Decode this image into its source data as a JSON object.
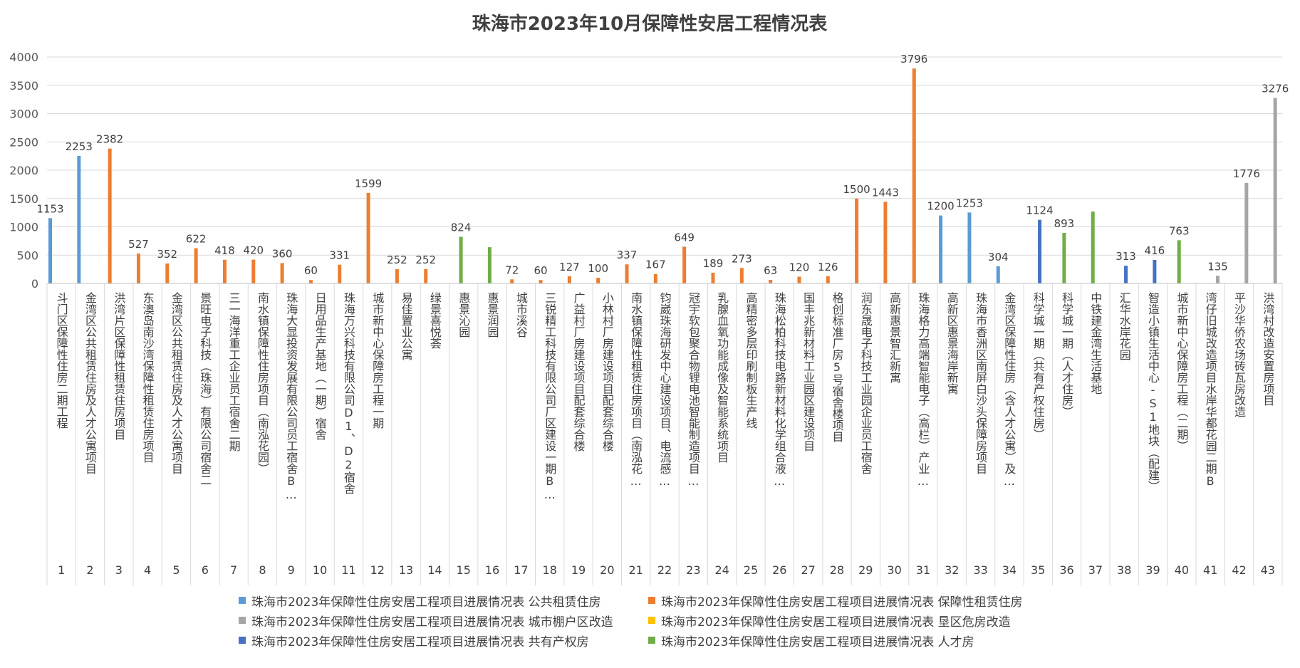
{
  "chart_data": {
    "type": "bar",
    "title": "珠海市2023年10月保障性安居工程情况表",
    "xlabel": "",
    "ylabel": "",
    "ylim": [
      0,
      4000
    ],
    "yticks": [
      0,
      500,
      1000,
      1500,
      2000,
      2500,
      3000,
      3500,
      4000
    ],
    "grid": true,
    "legend_position": "bottom",
    "series": [
      {
        "name": "珠海市2023年保障性住房安居工程项目进展情况表 公共租赁住房",
        "color": "#5B9BD5"
      },
      {
        "name": "珠海市2023年保障性住房安居工程项目进展情况表 保障性租赁住房",
        "color": "#ED7D31"
      },
      {
        "name": "珠海市2023年保障性住房安居工程项目进展情况表 城市棚户区改造",
        "color": "#A5A5A5"
      },
      {
        "name": "珠海市2023年保障性住房安居工程项目进展情况表 垦区危房改造",
        "color": "#FFC000"
      },
      {
        "name": "珠海市2023年保障性住房安居工程项目进展情况表 共有产权房",
        "color": "#4472C4"
      },
      {
        "name": "珠海市2023年保障性住房安居工程项目进展情况表 人才房",
        "color": "#70AD47"
      }
    ],
    "categories": [
      {
        "no": "1",
        "name": "斗门区保障性住房二期工程",
        "value": 1153,
        "series": 0,
        "label": "1153"
      },
      {
        "no": "2",
        "name": "金湾区公共租赁住房及人才公寓项目",
        "value": 2253,
        "series": 0,
        "label": "2253"
      },
      {
        "no": "3",
        "name": "洪湾片区保障性租赁住房项目",
        "value": 2382,
        "series": 1,
        "label": "2382"
      },
      {
        "no": "4",
        "name": "东澳岛南沙湾保障性租赁住房项目",
        "value": 527,
        "series": 1,
        "label": "527"
      },
      {
        "no": "5",
        "name": "金湾区公共租赁住房及人才公寓项目",
        "value": 352,
        "series": 1,
        "label": "352"
      },
      {
        "no": "6",
        "name": "景旺电子科技（珠海）有限公司宿舍二",
        "value": 622,
        "series": 1,
        "label": "622"
      },
      {
        "no": "7",
        "name": "三一海洋重工企业员工宿舍二期",
        "value": 418,
        "series": 1,
        "label": "418"
      },
      {
        "no": "8",
        "name": "南水镇保障性住房项目（南泓花园）",
        "value": 420,
        "series": 1,
        "label": "420"
      },
      {
        "no": "9",
        "name": "珠海大显投资发展有限公司员工宿舍B…",
        "value": 360,
        "series": 1,
        "label": "360"
      },
      {
        "no": "10",
        "name": "日用品生产基地（一期）宿舍",
        "value": 60,
        "series": 1,
        "label": "60"
      },
      {
        "no": "11",
        "name": "珠海万兴科技有限公司D1、D2宿舍",
        "value": 331,
        "series": 1,
        "label": "331"
      },
      {
        "no": "12",
        "name": "城市新中心保障房工程一期",
        "value": 1599,
        "series": 1,
        "label": "1599"
      },
      {
        "no": "13",
        "name": "易佳置业公寓",
        "value": 252,
        "series": 1,
        "label": "252"
      },
      {
        "no": "14",
        "name": "绿景喜悦荟",
        "value": 252,
        "series": 1,
        "label": "252"
      },
      {
        "no": "15",
        "name": "惠景沁园",
        "value": 824,
        "series": 5,
        "label": "824"
      },
      {
        "no": "16",
        "name": "惠景润园",
        "value": 640,
        "series": 5,
        "label": ""
      },
      {
        "no": "17",
        "name": "城市溪谷",
        "value": 72,
        "series": 1,
        "label": "72"
      },
      {
        "no": "18",
        "name": "三锐精工科技有限公司厂区建设一期B…",
        "value": 60,
        "series": 1,
        "label": "60"
      },
      {
        "no": "19",
        "name": "广益村厂房建设项目配套综合楼",
        "value": 127,
        "series": 1,
        "label": "127"
      },
      {
        "no": "20",
        "name": "小林村厂房建设项目配套综合楼",
        "value": 100,
        "series": 1,
        "label": "100"
      },
      {
        "no": "21",
        "name": "南水镇保障性租赁住房项目（南泓花…",
        "value": 337,
        "series": 1,
        "label": "337"
      },
      {
        "no": "22",
        "name": "钧崴珠海研发中心建设项目、电流感…",
        "value": 167,
        "series": 1,
        "label": "167"
      },
      {
        "no": "23",
        "name": "冠宇软包聚合物锂电池智能制造项目…",
        "value": 649,
        "series": 1,
        "label": "649"
      },
      {
        "no": "24",
        "name": "乳腺血氧功能成像及智能系统项目",
        "value": 189,
        "series": 1,
        "label": "189"
      },
      {
        "no": "25",
        "name": "高精密多层印刷制板生产线",
        "value": 273,
        "series": 1,
        "label": "273"
      },
      {
        "no": "26",
        "name": "珠海松柏科技电路新材料化学组合液…",
        "value": 63,
        "series": 1,
        "label": "63"
      },
      {
        "no": "27",
        "name": "国丰兆新材料工业园区建设项目",
        "value": 120,
        "series": 1,
        "label": "120"
      },
      {
        "no": "28",
        "name": "格创标准厂房5号宿舍楼项目",
        "value": 126,
        "series": 1,
        "label": "126"
      },
      {
        "no": "29",
        "name": "润东晟电子科技工业园企业员工宿舍",
        "value": 1500,
        "series": 1,
        "label": "1500"
      },
      {
        "no": "30",
        "name": "高新惠景智汇新寓",
        "value": 1443,
        "series": 1,
        "label": "1443"
      },
      {
        "no": "31",
        "name": "珠海格力高端智能电子（高栏）产业…",
        "value": 3796,
        "series": 1,
        "label": "3796"
      },
      {
        "no": "32",
        "name": "高新区惠景海岸新寓",
        "value": 1200,
        "series": 0,
        "label": "1200"
      },
      {
        "no": "33",
        "name": "珠海市香洲区南屏白沙头保障房项目",
        "value": 1253,
        "series": 0,
        "label": "1253"
      },
      {
        "no": "34",
        "name": "金湾区保障性住房（含人才公寓）及…",
        "value": 304,
        "series": 0,
        "label": "304"
      },
      {
        "no": "35",
        "name": "科学城一期（共有产权住房）",
        "value": 1124,
        "series": 4,
        "label": "1124"
      },
      {
        "no": "36",
        "name": "科学城一期（人才住房）",
        "value": 893,
        "series": 5,
        "label": "893"
      },
      {
        "no": "37",
        "name": "中铁建金湾生活基地",
        "value": 1270,
        "series": 5,
        "label": ""
      },
      {
        "no": "38",
        "name": "汇华水岸花园",
        "value": 313,
        "series": 4,
        "label": "313"
      },
      {
        "no": "39",
        "name": "智造小镇生活中心-S1地块（配建）",
        "value": 416,
        "series": 4,
        "label": "416"
      },
      {
        "no": "40",
        "name": "城市新中心保障房工程（二期）",
        "value": 763,
        "series": 5,
        "label": "763"
      },
      {
        "no": "41",
        "name": "湾仔旧城改造项目水岸华都花园二期B",
        "value": 135,
        "series": 2,
        "label": "135"
      },
      {
        "no": "42",
        "name": "平沙华侨农场砖瓦房改造",
        "value": 1776,
        "series": 2,
        "label": "1776"
      },
      {
        "no": "43",
        "name": "洪湾村改造安置房项目",
        "value": 3276,
        "series": 2,
        "label": "3276"
      }
    ]
  }
}
